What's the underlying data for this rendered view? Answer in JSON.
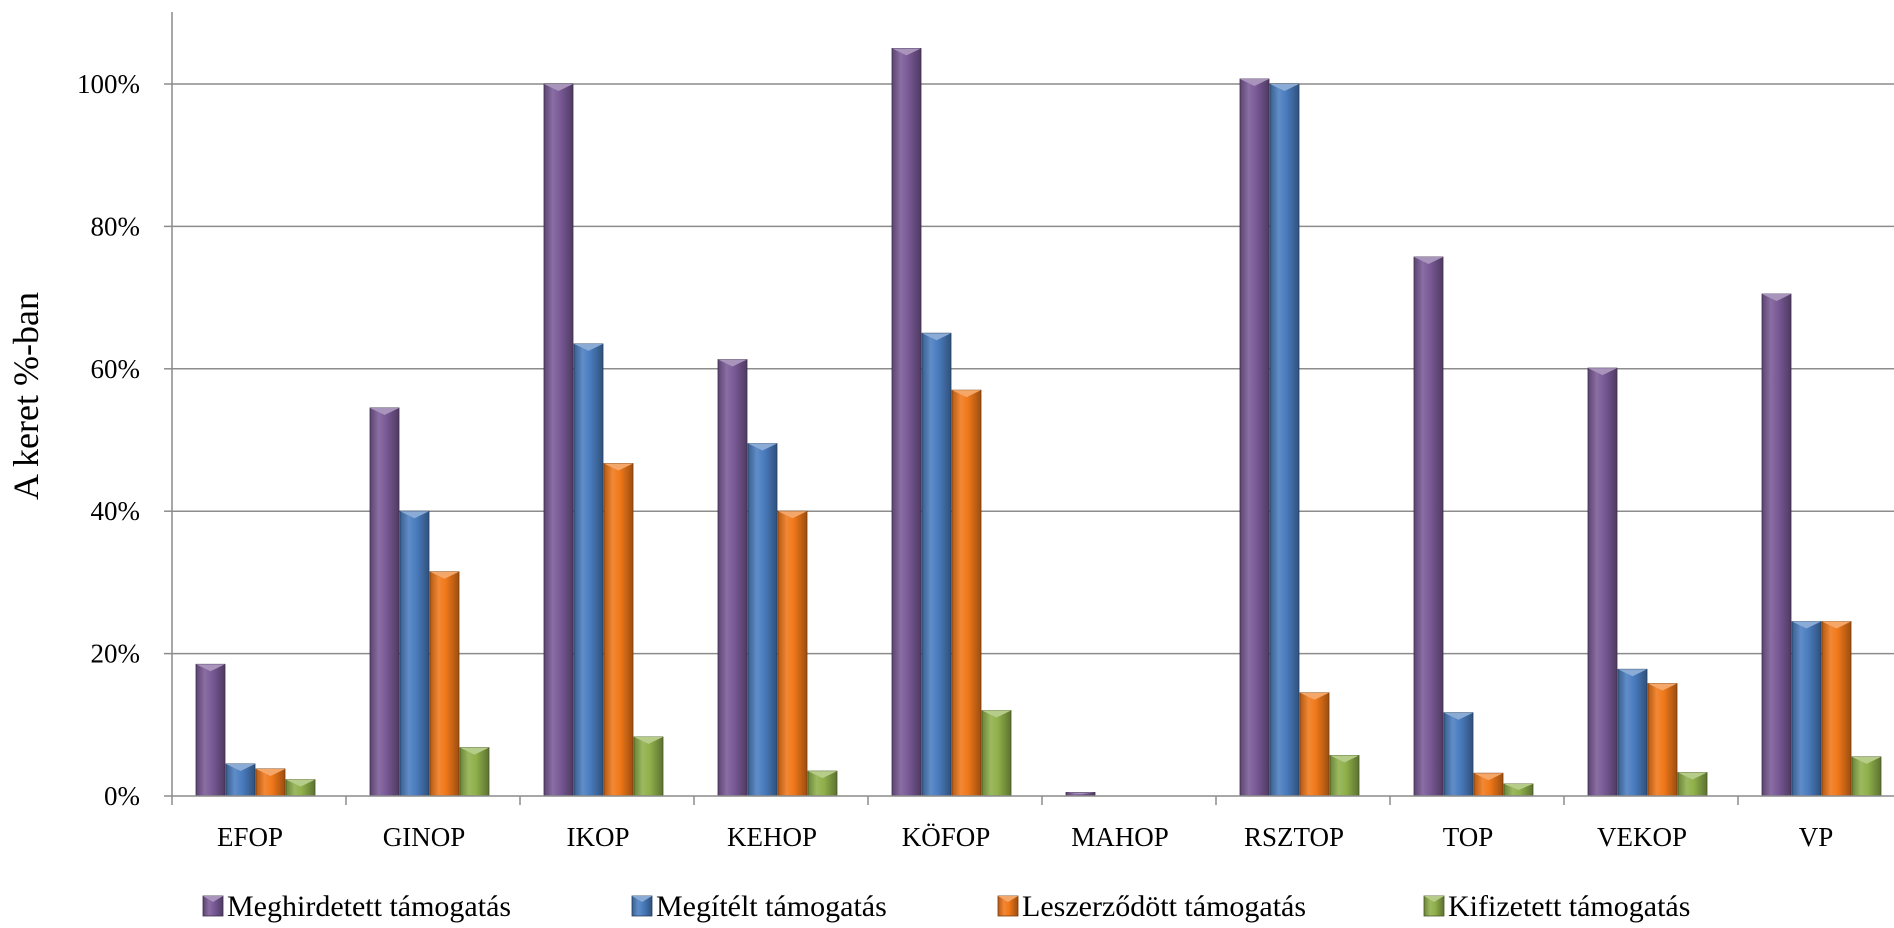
{
  "chart_data": {
    "type": "bar",
    "title": "",
    "xlabel": "",
    "ylabel": "A keret %-ban",
    "ylim": [
      0,
      110
    ],
    "yticks": [
      0,
      20,
      40,
      60,
      80,
      100
    ],
    "ytick_labels": [
      "0%",
      "20%",
      "40%",
      "60%",
      "80%",
      "100%"
    ],
    "grid": true,
    "legend_position": "bottom",
    "categories": [
      "EFOP",
      "GINOP",
      "IKOP",
      "KEHOP",
      "KÖFOP",
      "MAHOP",
      "RSZTOP",
      "TOP",
      "VEKOP",
      "VP"
    ],
    "series": [
      {
        "name": "Meghirdetett támogatás",
        "color": "#7a5a97",
        "values": [
          18.5,
          54.5,
          100,
          61.3,
          105,
          0.5,
          100.7,
          75.7,
          60.1,
          70.5
        ]
      },
      {
        "name": "Megítélt támogatás",
        "color": "#4a7dbf",
        "values": [
          4.5,
          40,
          63.5,
          49.5,
          65,
          0,
          100,
          11.7,
          17.8,
          24.5
        ]
      },
      {
        "name": "Leszerződött támogatás",
        "color": "#f07819",
        "values": [
          3.8,
          31.5,
          46.7,
          40,
          57,
          0,
          14.5,
          3.2,
          15.8,
          24.5
        ]
      },
      {
        "name": "Kifizetett támogatás",
        "color": "#8fb04a",
        "values": [
          2.3,
          6.8,
          8.3,
          3.5,
          12,
          0,
          5.7,
          1.7,
          3.3,
          5.5
        ]
      }
    ]
  }
}
